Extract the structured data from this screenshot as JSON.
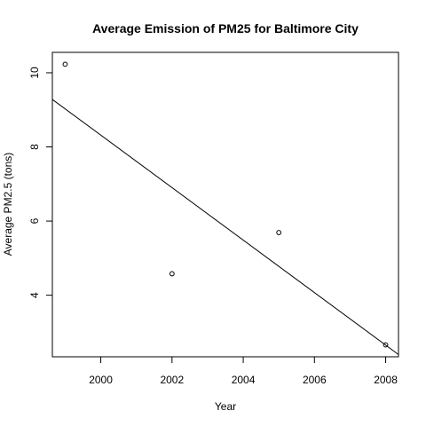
{
  "chart_data": {
    "type": "scatter",
    "title": "Average Emission of PM25 for Baltimore City",
    "xlabel": "Year",
    "ylabel": "Average PM2.5 (tons)",
    "xlim": [
      1998.64,
      2008.36
    ],
    "ylim": [
      2.34,
      10.55
    ],
    "xticks": [
      2000,
      2002,
      2004,
      2006,
      2008
    ],
    "yticks": [
      4,
      6,
      8,
      10
    ],
    "points": [
      {
        "x": 1999,
        "y": 10.23
      },
      {
        "x": 2002,
        "y": 4.58
      },
      {
        "x": 2005,
        "y": 5.69
      },
      {
        "x": 2008,
        "y": 2.66
      }
    ],
    "regression_line": {
      "x1": 1998.64,
      "y1": 9.28,
      "x2": 2008.36,
      "y2": 2.4
    },
    "grid": false,
    "legend": "none"
  }
}
